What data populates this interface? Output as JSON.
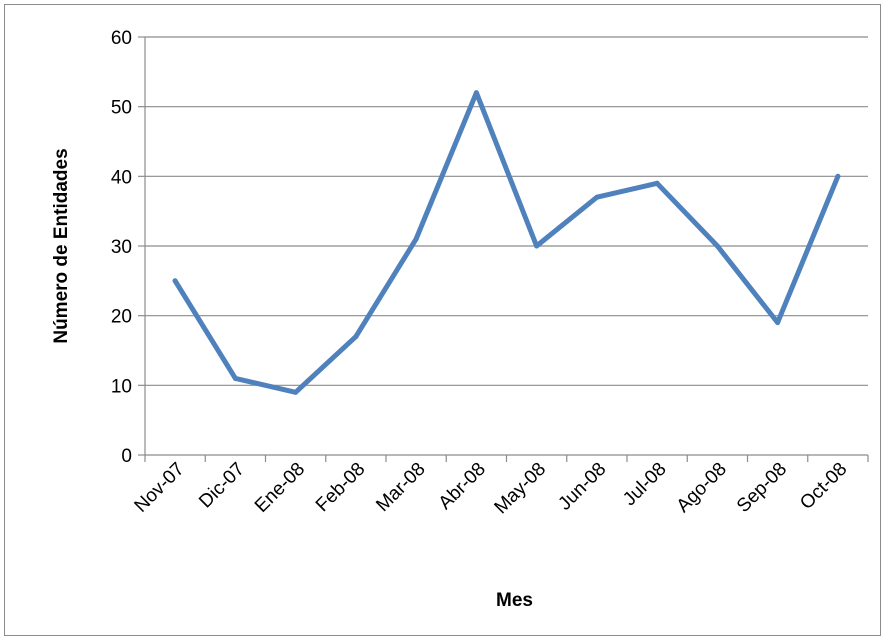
{
  "chart_data": {
    "type": "line",
    "title": "",
    "xlabel": "Mes",
    "ylabel": "Número de Entidades",
    "categories": [
      "Nov-07",
      "Dic-07",
      "Ene-08",
      "Feb-08",
      "Mar-08",
      "Abr-08",
      "May-08",
      "Jun-08",
      "Jul-08",
      "Ago-08",
      "Sep-08",
      "Oct-08"
    ],
    "series": [
      {
        "values": [
          25,
          11,
          9,
          17,
          31,
          52,
          30,
          37,
          39,
          30,
          19,
          40
        ],
        "color": "#4f81bd"
      }
    ],
    "ylim": [
      0,
      60
    ],
    "yticks": [
      0,
      10,
      20,
      30,
      40,
      50,
      60
    ],
    "grid": "horizontal",
    "legend": "none"
  }
}
